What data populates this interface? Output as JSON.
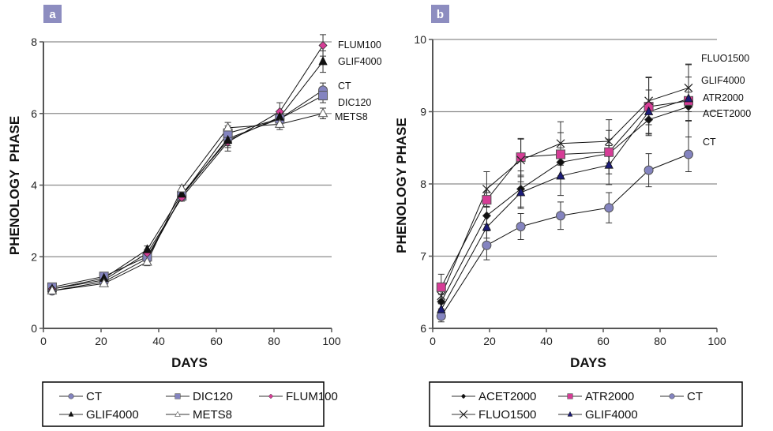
{
  "chart_data": [
    {
      "type": "line",
      "panel_label": "a",
      "title": "",
      "xlabel": "DAYS",
      "ylabel": "PHENOLOGY  PHASE",
      "xlim": [
        0,
        100
      ],
      "ylim": [
        0,
        8
      ],
      "xticks": [
        "0",
        "20",
        "40",
        "60",
        "80",
        "100"
      ],
      "yticks": [
        "0",
        "2",
        "4",
        "6",
        "8"
      ],
      "grid": true,
      "legend_position": "bottom",
      "x": [
        3,
        21,
        36,
        48,
        64,
        82,
        97
      ],
      "series": [
        {
          "name": "CT",
          "marker": "circle",
          "color": "#8484c0",
          "values": [
            1.05,
            1.3,
            1.95,
            3.7,
            5.3,
            5.85,
            6.65
          ],
          "err": [
            0.05,
            0.08,
            0.1,
            0.1,
            0.2,
            0.15,
            0.2
          ]
        },
        {
          "name": "DIC120",
          "marker": "square",
          "color": "#8484c0",
          "values": [
            1.15,
            1.45,
            2.0,
            3.7,
            5.45,
            5.85,
            6.5
          ],
          "err": [
            0.05,
            0.08,
            0.1,
            0.1,
            0.2,
            0.15,
            0.2
          ]
        },
        {
          "name": "FLUM100",
          "marker": "diamond",
          "color": "#d63c96",
          "values": [
            1.1,
            1.35,
            2.1,
            3.65,
            5.2,
            6.05,
            7.9
          ],
          "err": [
            0.05,
            0.08,
            0.1,
            0.1,
            0.25,
            0.25,
            0.3
          ]
        },
        {
          "name": "GLIF4000",
          "marker": "triangle",
          "color": "#111111",
          "values": [
            1.1,
            1.4,
            2.2,
            3.75,
            5.25,
            5.9,
            7.45
          ],
          "err": [
            0.05,
            0.08,
            0.1,
            0.1,
            0.2,
            0.15,
            0.3
          ]
        },
        {
          "name": "METS8",
          "marker": "triangle-open",
          "color": "#ffffff",
          "values": [
            1.05,
            1.25,
            1.85,
            3.9,
            5.6,
            5.7,
            6.0
          ],
          "err": [
            0.05,
            0.08,
            0.1,
            0.1,
            0.15,
            0.15,
            0.15
          ]
        }
      ],
      "end_labels": [
        "FLUM100",
        "GLIF4000",
        "CT",
        "DIC120",
        "METS8"
      ],
      "legend": [
        "CT",
        "DIC120",
        "FLUM100",
        "GLIF4000",
        "METS8"
      ]
    },
    {
      "type": "line",
      "panel_label": "b",
      "title": "",
      "xlabel": "DAYS",
      "ylabel": "PHENOLOGY PHASE",
      "xlim": [
        0,
        100
      ],
      "ylim": [
        6,
        10
      ],
      "xticks": [
        "0",
        "20",
        "40",
        "60",
        "80",
        "100"
      ],
      "yticks": [
        "6",
        "7",
        "8",
        "9",
        "10"
      ],
      "grid": true,
      "legend_position": "bottom",
      "x": [
        3,
        19,
        31,
        45,
        62,
        76,
        90
      ],
      "series": [
        {
          "name": "ACET2000",
          "marker": "diamond",
          "color": "#111111",
          "values": [
            6.37,
            7.56,
            7.93,
            8.3,
            8.42,
            8.89,
            9.07
          ],
          "err": [
            0.1,
            0.12,
            0.25,
            0.2,
            0.2,
            0.2,
            0.2
          ]
        },
        {
          "name": "ATR2000",
          "marker": "square",
          "color": "#d63c96",
          "values": [
            6.57,
            7.78,
            8.37,
            8.41,
            8.44,
            9.07,
            9.15
          ],
          "err": [
            0.18,
            0.1,
            0.25,
            0.3,
            0.3,
            0.4,
            0.5
          ]
        },
        {
          "name": "CT",
          "marker": "circle",
          "color": "#8484c0",
          "values": [
            6.17,
            7.15,
            7.41,
            7.56,
            7.67,
            8.19,
            8.41
          ],
          "err": [
            0.08,
            0.2,
            0.18,
            0.19,
            0.21,
            0.23,
            0.24
          ]
        },
        {
          "name": "FLUO1500",
          "marker": "x",
          "color": "#111111",
          "values": [
            6.45,
            7.93,
            8.33,
            8.56,
            8.59,
            9.15,
            9.33
          ],
          "err": [
            0.1,
            0.24,
            0.3,
            0.3,
            0.3,
            0.33,
            0.33
          ]
        },
        {
          "name": "GLIF4000",
          "marker": "triangle",
          "color": "#1c1c78",
          "values": [
            6.26,
            7.4,
            7.88,
            8.11,
            8.26,
            9.0,
            9.18
          ],
          "err": [
            0.08,
            0.15,
            0.22,
            0.27,
            0.27,
            0.3,
            0.3
          ]
        }
      ],
      "end_labels": [
        "FLUO1500",
        "GLIF4000",
        "ATR2000",
        "ACET2000",
        "CT"
      ],
      "legend": [
        "ACET2000",
        "ATR2000",
        "CT",
        "FLUO1500",
        "GLIF4000"
      ]
    }
  ]
}
